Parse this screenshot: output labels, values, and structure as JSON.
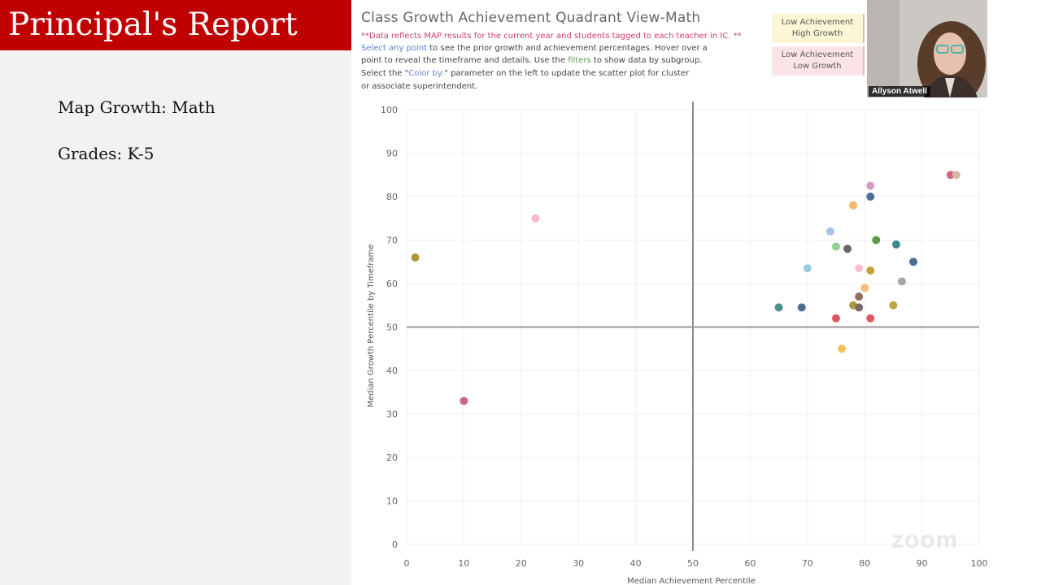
{
  "slide": {
    "title": "Principal's Report",
    "line1": "Map Growth: Math",
    "line2": "Grades: K-5"
  },
  "dashboard": {
    "title": "Class Growth Achievement Quadrant View-Math",
    "note_warning": "**Data reflects MAP results for the current year and students tagged to each teacher in IC. **",
    "instr_link1": "Select any point",
    "instr_text1": " to see the prior growth and achievement percentages. Hover over a",
    "instr_text2": "point to reveal the timeframe and details. Use the ",
    "instr_link2": "filters",
    "instr_text3": " to show data by subgroup.",
    "instr_text4a": "Select the \"",
    "instr_link3": "Color by:",
    "instr_text4b": "\" parameter on the left to update the scatter plot for cluster",
    "instr_text5": "or associate superintendent.",
    "legend": {
      "high_growth_line1": "Low Achievement",
      "high_growth_line2": "High Growth",
      "low_growth_line1": "Low Achievement",
      "low_growth_line2": "Low Growth",
      "high_growth_color": "#fbf6d5",
      "low_growth_color": "#fce4e6"
    }
  },
  "video": {
    "participant_name": "Allyson Atwell",
    "watermark": "zoom"
  },
  "chart_data": {
    "type": "scatter",
    "xlabel": "Median Achievement Percentile",
    "ylabel": "Median Growth Percentile by Timeframe",
    "xlim": [
      0,
      100
    ],
    "ylim": [
      0,
      100
    ],
    "x_ticks": [
      "0",
      "10",
      "20",
      "30",
      "40",
      "50",
      "60",
      "70",
      "80",
      "90",
      "100"
    ],
    "y_ticks": [
      "0",
      "10",
      "20",
      "30",
      "40",
      "50",
      "60",
      "70",
      "80",
      "90",
      "100"
    ],
    "grid": true,
    "reference_lines": {
      "x": 50,
      "y": 50
    },
    "points": [
      {
        "x": 1.5,
        "y": 66,
        "color": "#b09636"
      },
      {
        "x": 10,
        "y": 33,
        "color": "#c9668a"
      },
      {
        "x": 22.5,
        "y": 75,
        "color": "#f8b9cc"
      },
      {
        "x": 65,
        "y": 54.5,
        "color": "#4a8f8c"
      },
      {
        "x": 69,
        "y": 54.5,
        "color": "#4e6d94"
      },
      {
        "x": 70,
        "y": 63.5,
        "color": "#9ec9e2"
      },
      {
        "x": 74,
        "y": 72,
        "color": "#a7c4e4"
      },
      {
        "x": 75,
        "y": 68.5,
        "color": "#8fcf8f"
      },
      {
        "x": 75,
        "y": 52,
        "color": "#e05762"
      },
      {
        "x": 76,
        "y": 45,
        "color": "#f2c15c"
      },
      {
        "x": 77,
        "y": 68,
        "color": "#6b6466"
      },
      {
        "x": 78,
        "y": 78,
        "color": "#f5b86b"
      },
      {
        "x": 78,
        "y": 55,
        "color": "#b09636"
      },
      {
        "x": 79,
        "y": 63.5,
        "color": "#f8bfd4"
      },
      {
        "x": 79,
        "y": 57,
        "color": "#8f6e5e"
      },
      {
        "x": 79,
        "y": 54.5,
        "color": "#7b6a6a"
      },
      {
        "x": 80,
        "y": 59,
        "color": "#f5c072"
      },
      {
        "x": 81,
        "y": 82.5,
        "color": "#d59ac6"
      },
      {
        "x": 81,
        "y": 80,
        "color": "#4e6d94"
      },
      {
        "x": 81,
        "y": 63,
        "color": "#c2a23c"
      },
      {
        "x": 81,
        "y": 52,
        "color": "#e05762"
      },
      {
        "x": 82,
        "y": 70,
        "color": "#5e9a48"
      },
      {
        "x": 85,
        "y": 55,
        "color": "#c2a23c"
      },
      {
        "x": 85.5,
        "y": 69,
        "color": "#3d8a8e"
      },
      {
        "x": 86.5,
        "y": 60.5,
        "color": "#a8a8a8"
      },
      {
        "x": 88.5,
        "y": 65,
        "color": "#4a6d94"
      },
      {
        "x": 95,
        "y": 85,
        "color": "#d4637e"
      },
      {
        "x": 96,
        "y": 85,
        "color": "#d4b6a8"
      }
    ]
  }
}
